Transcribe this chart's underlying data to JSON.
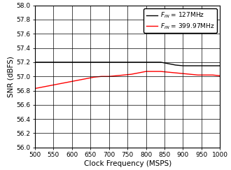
{
  "title": "",
  "xlabel": "Clock Frequency (MSPS)",
  "ylabel": "SNR (dBFS)",
  "xlim": [
    500,
    1000
  ],
  "ylim": [
    56.0,
    58.0
  ],
  "xticks": [
    500,
    550,
    600,
    650,
    700,
    750,
    800,
    850,
    900,
    950,
    1000
  ],
  "yticks": [
    56.0,
    56.2,
    56.4,
    56.6,
    56.8,
    57.0,
    57.2,
    57.4,
    57.6,
    57.8,
    58.0
  ],
  "line1": {
    "x": [
      500,
      520,
      540,
      560,
      580,
      600,
      620,
      640,
      660,
      680,
      700,
      720,
      740,
      760,
      780,
      800,
      820,
      840,
      860,
      880,
      900,
      920,
      940,
      960,
      980,
      1000
    ],
    "y": [
      57.2,
      57.2,
      57.2,
      57.2,
      57.2,
      57.2,
      57.2,
      57.2,
      57.2,
      57.2,
      57.2,
      57.2,
      57.2,
      57.2,
      57.2,
      57.2,
      57.2,
      57.2,
      57.18,
      57.16,
      57.15,
      57.15,
      57.15,
      57.15,
      57.15,
      57.15
    ],
    "color": "#000000",
    "label": "F_IN = 127MHz"
  },
  "line2": {
    "x": [
      500,
      520,
      540,
      560,
      580,
      600,
      620,
      640,
      660,
      680,
      700,
      720,
      740,
      760,
      780,
      800,
      820,
      840,
      860,
      880,
      900,
      920,
      940,
      960,
      980,
      1000
    ],
    "y": [
      56.83,
      56.85,
      56.87,
      56.89,
      56.91,
      56.93,
      56.95,
      56.97,
      56.99,
      57.0,
      57.0,
      57.01,
      57.02,
      57.03,
      57.05,
      57.07,
      57.07,
      57.07,
      57.06,
      57.05,
      57.04,
      57.03,
      57.02,
      57.02,
      57.02,
      57.01
    ],
    "color": "#ff0000",
    "label": "F_IN = 399.97MHz"
  },
  "legend_fontsize": 6.5,
  "axis_fontsize": 7.5,
  "tick_fontsize": 6.5,
  "linewidth": 1.0,
  "background_color": "#ffffff",
  "grid_color": "#000000"
}
